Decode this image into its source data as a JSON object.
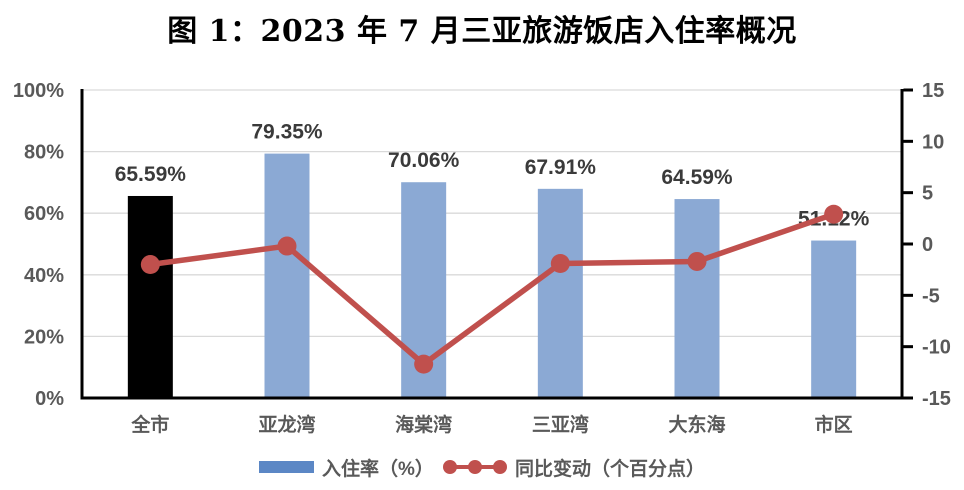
{
  "title": "图 1：2023 年 7 月三亚旅游饭店入住率概况",
  "colors": {
    "bar_blue": "#8BA9D4",
    "bar_black": "#000000",
    "line_red": "#C0504D",
    "legend_blue": "#5B87C5",
    "grid": "#D9D9D9",
    "axis_line": "#000000",
    "axis_text": "#595959",
    "data_label": "#3A3A3A"
  },
  "chart_data": {
    "type": "bar",
    "subtype": "bar+line combo",
    "title": "图 1：2023 年 7 月三亚旅游饭店入住率概况",
    "categories": [
      "全市",
      "亚龙湾",
      "海棠湾",
      "三亚湾",
      "大东海",
      "市区"
    ],
    "series": [
      {
        "name": "入住率（%）",
        "type": "bar",
        "axis": "left",
        "values": [
          65.59,
          79.35,
          70.06,
          67.91,
          64.59,
          51.12
        ],
        "labels": [
          "65.59%",
          "79.35%",
          "70.06%",
          "67.91%",
          "64.59%",
          "51.12%"
        ],
        "point_colors": [
          "#000000",
          "#8BA9D4",
          "#8BA9D4",
          "#8BA9D4",
          "#8BA9D4",
          "#8BA9D4"
        ]
      },
      {
        "name": "同比变动（个百分点）",
        "type": "line",
        "axis": "right",
        "values": [
          -2.0,
          -0.2,
          -11.7,
          -1.9,
          -1.7,
          2.9
        ],
        "color": "#C0504D"
      }
    ],
    "left_axis": {
      "range": [
        0,
        100
      ],
      "tick_values": [
        0,
        20,
        40,
        60,
        80,
        100
      ],
      "tick_labels": [
        "0%",
        "20%",
        "40%",
        "60%",
        "80%",
        "100%"
      ]
    },
    "right_axis": {
      "range": [
        -15,
        15
      ],
      "tick_values": [
        -15,
        -10,
        -5,
        0,
        5,
        10,
        15
      ],
      "tick_labels": [
        "-15",
        "-10",
        "-5",
        "0",
        "5",
        "10",
        "15"
      ]
    },
    "grid": "horizontal gridlines at 20% steps",
    "legend_position": "bottom"
  },
  "legend": {
    "items": [
      {
        "label": "入住率（%）",
        "marker": "bar-swatch"
      },
      {
        "label": "同比变动（个百分点）",
        "marker": "line-dots"
      }
    ]
  }
}
